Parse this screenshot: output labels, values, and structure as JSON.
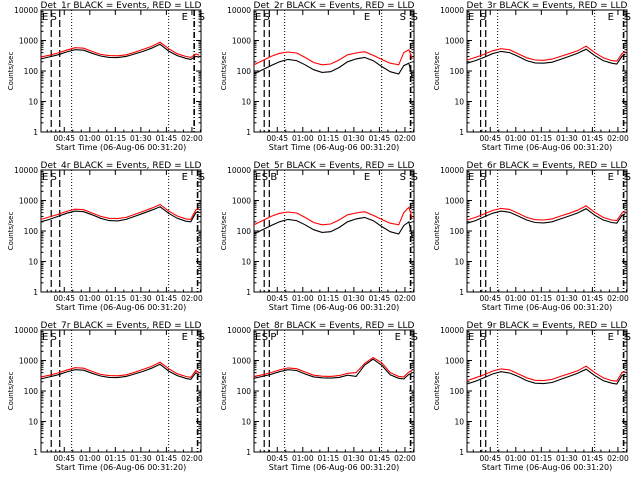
{
  "ylabel": "Counts/sec",
  "xlabel": "Start Time (06-Aug-06 00:31:20)",
  "yticks": [
    "1",
    "10",
    "100",
    "1000",
    "10000"
  ],
  "xticks": [
    "00:45",
    "01:00",
    "01:15",
    "01:30",
    "01:45",
    "02:00"
  ],
  "colors": {
    "events": "#000000",
    "lld": "#ff0000"
  },
  "chart_data": [
    {
      "type": "line",
      "title": "Det_1r BLACK = Events, RED = LLD",
      "x_unit": "minutes after 00:31:20",
      "x": [
        0,
        5,
        10,
        15,
        20,
        25,
        30,
        35,
        40,
        45,
        50,
        55,
        60,
        65,
        70,
        75,
        80,
        85,
        88,
        91,
        93
      ],
      "ylim": [
        1,
        10000
      ],
      "yscale": "log",
      "markers": {
        "dashed": [
          6,
          11
        ],
        "dotted": [
          18,
          75
        ],
        "dash_dot": [
          90
        ]
      },
      "letters": [
        {
          "text": "E",
          "x": 0
        },
        {
          "text": "S",
          "x": 5
        },
        {
          "text": "E",
          "x": 82
        },
        {
          "text": "S",
          "x": 92
        }
      ],
      "series": [
        {
          "values": [
            250,
            290,
            340,
            420,
            500,
            480,
            380,
            310,
            280,
            275,
            300,
            360,
            440,
            560,
            750,
            450,
            320,
            260,
            240,
            300,
            280
          ]
        },
        {
          "values": [
            290,
            330,
            390,
            480,
            580,
            560,
            440,
            350,
            320,
            315,
            340,
            410,
            510,
            640,
            880,
            540,
            370,
            300,
            280,
            360,
            330
          ]
        }
      ]
    },
    {
      "type": "line",
      "title": "Det_2r BLACK = Events, RED = LLD",
      "x_unit": "minutes after 00:31:20",
      "x": [
        0,
        5,
        10,
        15,
        20,
        25,
        30,
        35,
        40,
        45,
        50,
        55,
        60,
        65,
        70,
        75,
        80,
        85,
        88,
        91,
        93
      ],
      "ylim": [
        1,
        10000
      ],
      "yscale": "log",
      "markers": {
        "dashed": [
          6,
          9
        ],
        "dotted": [
          18,
          75
        ],
        "dash_dot": [
          92
        ]
      },
      "letters": [
        {
          "text": "E",
          "x": 0
        },
        {
          "text": "S",
          "x": 5
        },
        {
          "text": "E",
          "x": 64
        },
        {
          "text": "S",
          "x": 85
        },
        {
          "text": "S",
          "x": 92
        }
      ],
      "series": [
        {
          "values": [
            80,
            110,
            150,
            200,
            240,
            220,
            160,
            110,
            90,
            95,
            130,
            200,
            250,
            280,
            220,
            140,
            95,
            80,
            150,
            180,
            60
          ]
        },
        {
          "values": [
            160,
            220,
            300,
            380,
            420,
            390,
            280,
            190,
            160,
            170,
            230,
            340,
            390,
            430,
            330,
            240,
            180,
            160,
            400,
            500,
            250
          ]
        }
      ]
    },
    {
      "type": "line",
      "title": "Det_3r BLACK = Events, RED = LLD",
      "x_unit": "minutes after 00:31:20",
      "x": [
        0,
        5,
        10,
        15,
        20,
        25,
        30,
        35,
        40,
        45,
        50,
        55,
        60,
        65,
        70,
        75,
        80,
        85,
        88,
        91,
        93
      ],
      "ylim": [
        1,
        10000
      ],
      "yscale": "log",
      "markers": {
        "dashed": [
          8,
          11
        ],
        "dotted": [
          18,
          75
        ],
        "dash_dot": [
          92
        ]
      },
      "letters": [
        {
          "text": "E",
          "x": 0
        },
        {
          "text": "S",
          "x": 7
        },
        {
          "text": "E",
          "x": 82
        },
        {
          "text": "S",
          "x": 92
        }
      ],
      "series": [
        {
          "values": [
            180,
            220,
            280,
            370,
            440,
            400,
            300,
            220,
            185,
            180,
            195,
            240,
            300,
            380,
            520,
            320,
            220,
            180,
            170,
            300,
            360
          ]
        },
        {
          "values": [
            230,
            280,
            350,
            460,
            540,
            500,
            370,
            270,
            230,
            225,
            245,
            300,
            370,
            460,
            650,
            400,
            270,
            220,
            210,
            370,
            440
          ]
        }
      ]
    },
    {
      "type": "line",
      "title": "Det_4r BLACK = Events, RED = LLD",
      "x_unit": "minutes after 00:31:20",
      "x": [
        0,
        5,
        10,
        15,
        20,
        25,
        30,
        35,
        40,
        45,
        50,
        55,
        60,
        65,
        70,
        75,
        80,
        85,
        88,
        91,
        93
      ],
      "ylim": [
        1,
        10000
      ],
      "yscale": "log",
      "markers": {
        "dashed": [
          6,
          11
        ],
        "dotted": [
          18,
          75
        ],
        "dash_dot": [
          92
        ]
      },
      "letters": [
        {
          "text": "E",
          "x": 0
        },
        {
          "text": "S",
          "x": 5
        },
        {
          "text": "E",
          "x": 82
        },
        {
          "text": "S",
          "x": 92
        }
      ],
      "series": [
        {
          "values": [
            200,
            240,
            300,
            380,
            450,
            430,
            340,
            260,
            220,
            215,
            240,
            300,
            380,
            480,
            620,
            380,
            260,
            210,
            200,
            400,
            420
          ]
        },
        {
          "values": [
            240,
            290,
            350,
            440,
            520,
            500,
            390,
            300,
            260,
            255,
            280,
            350,
            440,
            560,
            740,
            450,
            310,
            250,
            240,
            500,
            520
          ]
        }
      ]
    },
    {
      "type": "line",
      "title": "Det_5r BLACK = Events, RED = LLD",
      "x_unit": "minutes after 00:31:20",
      "x": [
        0,
        5,
        10,
        15,
        20,
        25,
        30,
        35,
        40,
        45,
        50,
        55,
        60,
        65,
        70,
        75,
        80,
        85,
        88,
        91,
        93
      ],
      "ylim": [
        1,
        10000
      ],
      "yscale": "log",
      "markers": {
        "dashed": [
          6,
          9
        ],
        "dotted": [
          18,
          75
        ],
        "dash_dot": [
          92
        ]
      },
      "letters": [
        {
          "text": "E",
          "x": 0
        },
        {
          "text": "S",
          "x": 4
        },
        {
          "text": "B",
          "x": 9
        },
        {
          "text": "E",
          "x": 64
        },
        {
          "text": "S",
          "x": 85
        },
        {
          "text": "S",
          "x": 92
        }
      ],
      "series": [
        {
          "values": [
            80,
            110,
            150,
            200,
            240,
            220,
            160,
            110,
            90,
            95,
            130,
            200,
            250,
            280,
            220,
            140,
            95,
            80,
            150,
            200,
            60
          ]
        },
        {
          "values": [
            160,
            220,
            300,
            380,
            420,
            390,
            280,
            190,
            160,
            170,
            230,
            340,
            390,
            430,
            330,
            240,
            180,
            160,
            400,
            600,
            250
          ]
        }
      ]
    },
    {
      "type": "line",
      "title": "Det_6r BLACK = Events, RED = LLD",
      "x_unit": "minutes after 00:31:20",
      "x": [
        0,
        5,
        10,
        15,
        20,
        25,
        30,
        35,
        40,
        45,
        50,
        55,
        60,
        65,
        70,
        75,
        80,
        85,
        88,
        91,
        93
      ],
      "ylim": [
        1,
        10000
      ],
      "yscale": "log",
      "markers": {
        "dashed": [
          8,
          11
        ],
        "dotted": [
          18,
          75
        ],
        "dash_dot": [
          92
        ]
      },
      "letters": [
        {
          "text": "E",
          "x": 0
        },
        {
          "text": "S",
          "x": 7
        },
        {
          "text": "E",
          "x": 82
        },
        {
          "text": "S",
          "x": 92
        }
      ],
      "series": [
        {
          "values": [
            180,
            220,
            290,
            380,
            450,
            410,
            310,
            230,
            190,
            185,
            200,
            250,
            310,
            390,
            540,
            330,
            230,
            190,
            180,
            320,
            370
          ]
        },
        {
          "values": [
            230,
            280,
            360,
            470,
            550,
            510,
            380,
            280,
            235,
            230,
            250,
            310,
            380,
            480,
            670,
            410,
            280,
            230,
            220,
            390,
            450
          ]
        }
      ]
    },
    {
      "type": "line",
      "title": "Det_7r BLACK = Events, RED = LLD",
      "x_unit": "minutes after 00:31:20",
      "x": [
        0,
        5,
        10,
        15,
        20,
        25,
        30,
        35,
        40,
        45,
        50,
        55,
        60,
        65,
        70,
        75,
        80,
        85,
        88,
        91,
        93
      ],
      "ylim": [
        1,
        10000
      ],
      "yscale": "log",
      "markers": {
        "dashed": [
          6,
          11
        ],
        "dotted": [
          18,
          75
        ],
        "dash_dot": [
          92
        ]
      },
      "letters": [
        {
          "text": "E",
          "x": 0
        },
        {
          "text": "S",
          "x": 5
        },
        {
          "text": "E",
          "x": 82
        },
        {
          "text": "S",
          "x": 92
        }
      ],
      "series": [
        {
          "values": [
            250,
            290,
            340,
            420,
            500,
            480,
            380,
            310,
            280,
            275,
            300,
            360,
            440,
            560,
            750,
            450,
            320,
            260,
            240,
            400,
            330
          ]
        },
        {
          "values": [
            290,
            330,
            390,
            480,
            580,
            560,
            440,
            350,
            320,
            315,
            340,
            410,
            510,
            640,
            880,
            540,
            370,
            300,
            280,
            480,
            380
          ]
        }
      ]
    },
    {
      "type": "line",
      "title": "Det_8r BLACK = Events, RED = LLD",
      "x_unit": "minutes after 00:31:20",
      "x": [
        0,
        5,
        10,
        15,
        20,
        25,
        30,
        35,
        40,
        45,
        50,
        55,
        60,
        65,
        70,
        75,
        80,
        85,
        88,
        91,
        93
      ],
      "ylim": [
        1,
        10000
      ],
      "yscale": "log",
      "markers": {
        "dashed": [
          6,
          9
        ],
        "dotted": [
          18,
          75
        ],
        "dash_dot": [
          92
        ]
      },
      "letters": [
        {
          "text": "E",
          "x": 0
        },
        {
          "text": "S",
          "x": 4
        },
        {
          "text": "P",
          "x": 9
        },
        {
          "text": "E",
          "x": 82
        },
        {
          "text": "S",
          "x": 92
        }
      ],
      "series": [
        {
          "values": [
            260,
            300,
            350,
            430,
            500,
            470,
            360,
            290,
            270,
            265,
            280,
            330,
            300,
            700,
            1100,
            700,
            340,
            260,
            250,
            350,
            400
          ]
        },
        {
          "values": [
            300,
            340,
            400,
            490,
            570,
            540,
            420,
            330,
            305,
            300,
            320,
            380,
            400,
            800,
            1250,
            850,
            400,
            300,
            290,
            420,
            480
          ]
        }
      ]
    },
    {
      "type": "line",
      "title": "Det_9r BLACK = Events, RED = LLD",
      "x_unit": "minutes after 00:31:20",
      "x": [
        0,
        5,
        10,
        15,
        20,
        25,
        30,
        35,
        40,
        45,
        50,
        55,
        60,
        65,
        70,
        75,
        80,
        85,
        88,
        91,
        93
      ],
      "ylim": [
        1,
        10000
      ],
      "yscale": "log",
      "markers": {
        "dashed": [
          8,
          11
        ],
        "dotted": [
          18,
          75
        ],
        "dash_dot": [
          92
        ]
      },
      "letters": [
        {
          "text": "E",
          "x": 0
        },
        {
          "text": "S",
          "x": 7
        },
        {
          "text": "E",
          "x": 82
        },
        {
          "text": "S",
          "x": 92
        }
      ],
      "series": [
        {
          "values": [
            170,
            210,
            270,
            360,
            430,
            390,
            300,
            220,
            180,
            175,
            190,
            240,
            300,
            380,
            520,
            320,
            220,
            180,
            170,
            320,
            350
          ]
        },
        {
          "values": [
            220,
            270,
            340,
            450,
            530,
            490,
            370,
            270,
            225,
            220,
            240,
            300,
            370,
            460,
            650,
            400,
            270,
            220,
            210,
            400,
            430
          ]
        }
      ]
    }
  ]
}
